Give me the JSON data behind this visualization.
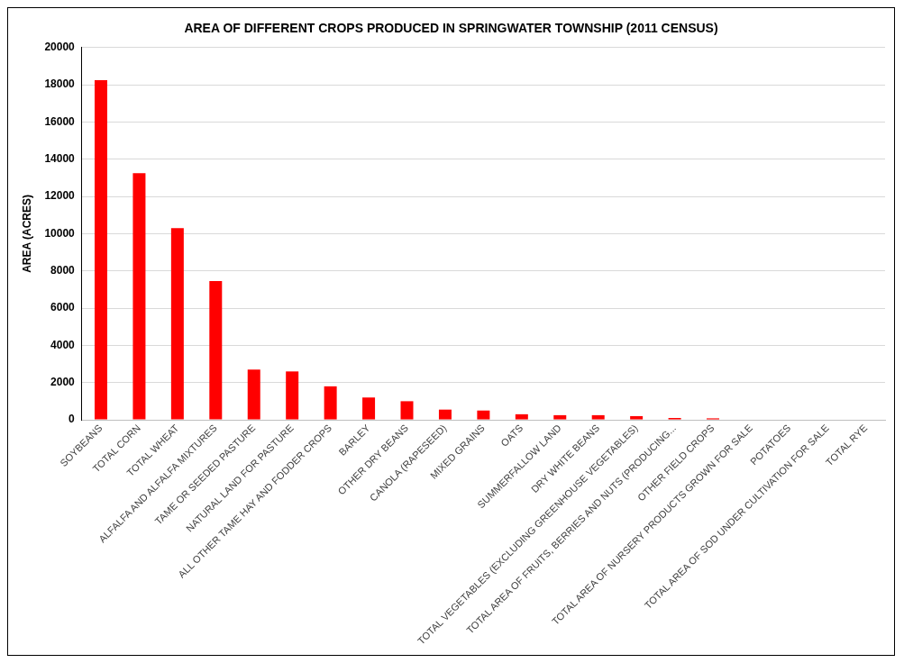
{
  "chart_data": {
    "type": "bar",
    "title": "AREA OF DIFFERENT CROPS PRODUCED IN SPRINGWATER TOWNSHIP (2011 CENSUS)",
    "ylabel": "AREA (ACRES)",
    "categories": [
      "SOYBEANS",
      "TOTAL CORN",
      "TOTAL WHEAT",
      "ALFALFA AND ALFALFA MIXTURES",
      "TAME OR SEEDED PASTURE",
      "NATURAL LAND FOR PASTURE",
      "ALL OTHER TAME HAY AND FODDER CROPS",
      "BARLEY",
      "OTHER DRY BEANS",
      "CANOLA (RAPESEED)",
      "MIXED GRAINS",
      "OATS",
      "SUMMERFALLOW LAND",
      "DRY WHITE BEANS",
      "TOTAL VEGETABLES (EXCLUDING GREENHOUSE VEGETABLES)",
      "TOTAL AREA OF FRUITS, BERRIES AND NUTS (PRODUCING...",
      "OTHER FIELD CROPS",
      "TOTAL AREA OF NURSERY PRODUCTS GROWN FOR SALE",
      "POTATOES",
      "TOTAL AREA OF SOD UNDER CULTIVATION FOR SALE",
      "TOTAL RYE"
    ],
    "values": [
      18250,
      13250,
      10300,
      7450,
      2700,
      2600,
      1800,
      1200,
      1000,
      550,
      500,
      300,
      250,
      250,
      200,
      100,
      80,
      0,
      0,
      0,
      0
    ],
    "color": "#ff0000",
    "ylim": [
      0,
      20000
    ],
    "yticks": [
      0,
      2000,
      4000,
      6000,
      8000,
      10000,
      12000,
      14000,
      16000,
      18000,
      20000
    ],
    "grid": "y"
  }
}
